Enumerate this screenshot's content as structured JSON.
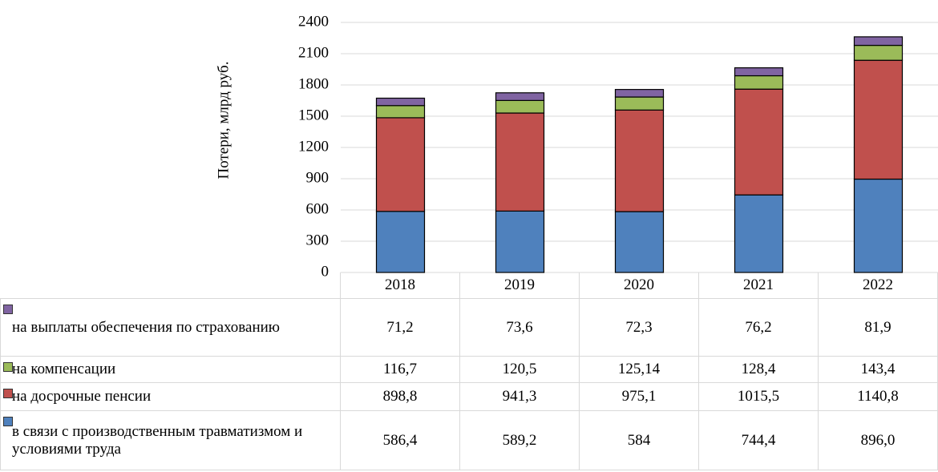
{
  "chart_data": {
    "type": "bar",
    "stacked": true,
    "y_label": "Потери, млрд руб.",
    "categories": [
      "2018",
      "2019",
      "2020",
      "2021",
      "2022"
    ],
    "ylim": [
      0,
      2400
    ],
    "yticks": [
      0,
      300,
      600,
      900,
      1200,
      1500,
      1800,
      2100,
      2400
    ],
    "grid": true,
    "series": [
      {
        "name": "в связи с производственным травматизмом и условиями труда",
        "color": "#4f81bd",
        "values": [
          586.4,
          589.2,
          584,
          744.4,
          896.0
        ],
        "value_labels": [
          "586,4",
          "589,2",
          "584",
          "744,4",
          "896,0"
        ]
      },
      {
        "name": "на досрочные пенсии",
        "color": "#c0504d",
        "values": [
          898.8,
          941.3,
          975.1,
          1015.5,
          1140.8
        ],
        "value_labels": [
          "898,8",
          "941,3",
          "975,1",
          "1015,5",
          "1140,8"
        ]
      },
      {
        "name": "на компенсации",
        "color": "#9bbb59",
        "values": [
          116.7,
          120.5,
          125.14,
          128.4,
          143.4
        ],
        "value_labels": [
          "116,7",
          "120,5",
          "125,14",
          "128,4",
          "143,4"
        ]
      },
      {
        "name": "на выплаты обеспечения по страхованию",
        "color": "#8064a2",
        "values": [
          71.2,
          73.6,
          72.3,
          76.2,
          81.9
        ],
        "value_labels": [
          "71,2",
          "73,6",
          "72,3",
          "76,2",
          "81,9"
        ]
      }
    ]
  }
}
